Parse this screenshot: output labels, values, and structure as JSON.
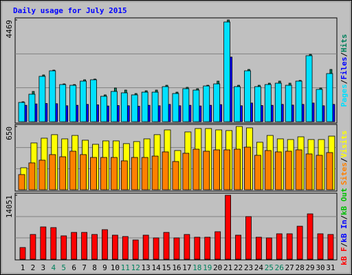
{
  "chart_data": {
    "type": "bar",
    "title": "Daily usage for July 2015",
    "legend_separator": "/",
    "categories": [
      "1",
      "2",
      "3",
      "4",
      "5",
      "6",
      "7",
      "8",
      "9",
      "10",
      "11",
      "12",
      "13",
      "14",
      "15",
      "16",
      "17",
      "18",
      "19",
      "20",
      "21",
      "22",
      "23",
      "24",
      "25",
      "26",
      "27",
      "28",
      "29",
      "30",
      "31"
    ],
    "label_colors": [
      "#000000",
      "#000000",
      "#000000",
      "#00805c",
      "#00805c",
      "#000000",
      "#000000",
      "#000000",
      "#000000",
      "#000000",
      "#00805c",
      "#00805c",
      "#000000",
      "#000000",
      "#000000",
      "#000000",
      "#000000",
      "#00805c",
      "#00805c",
      "#000000",
      "#000000",
      "#000000",
      "#000000",
      "#000000",
      "#00805c",
      "#00805c",
      "#000000",
      "#000000",
      "#000000",
      "#000000",
      "#000000"
    ],
    "grid": true,
    "grid_divisions": 3,
    "panels": [
      {
        "ylim": [
          0,
          4469
        ],
        "yticks": [
          4469
        ],
        "series": [
          {
            "name": "Pages",
            "color": "#00e0ff",
            "values": [
              846,
              1208,
              1993,
              2235,
              1631,
              1600,
              1782,
              1842,
              1117,
              1329,
              1268,
              1178,
              1298,
              1298,
              1540,
              1238,
              1449,
              1389,
              1570,
              1661,
              4379,
              1540,
              2235,
              1540,
              1631,
              1691,
              1600,
              1782,
              2899,
              1419,
              2114
            ]
          },
          {
            "name": "Files",
            "color": "#0000ff",
            "values": [
              720,
              780,
              800,
              790,
              700,
              720,
              760,
              740,
              690,
              710,
              700,
              680,
              720,
              700,
              760,
              700,
              720,
              690,
              720,
              750,
              2839,
              700,
              820,
              710,
              720,
              760,
              730,
              760,
              820,
              700,
              760
            ]
          },
          {
            "name": "Hits",
            "color": "#00805c",
            "values": [
              876,
              1329,
              2054,
              2265,
              1661,
              1631,
              1842,
              1872,
              1178,
              1480,
              1389,
              1238,
              1359,
              1389,
              1600,
              1298,
              1510,
              1449,
              1600,
              1782,
              4469,
              1600,
              2295,
              1600,
              1691,
              1782,
              1691,
              1812,
              2959,
              1480,
              2295
            ]
          }
        ]
      },
      {
        "ylim": [
          0,
          650
        ],
        "yticks": [
          650
        ],
        "series": [
          {
            "name": "Sites",
            "color": "#ff8000",
            "values": [
              156,
              276,
              304,
              361,
              339,
              396,
              361,
              332,
              332,
              332,
              297,
              332,
              332,
              346,
              389,
              290,
              375,
              417,
              396,
              410,
              410,
              417,
              438,
              354,
              403,
              389,
              396,
              410,
              368,
              354,
              382
            ]
          },
          {
            "name": "Visits",
            "color": "#ffff00",
            "values": [
              226,
              481,
              530,
              566,
              523,
              558,
              509,
              467,
              502,
              502,
              474,
              495,
              523,
              566,
              615,
              403,
              594,
              629,
              629,
              615,
              608,
              650,
              636,
              488,
              558,
              523,
              516,
              544,
              516,
              516,
              551
            ]
          }
        ]
      },
      {
        "ylim": [
          0,
          14051
        ],
        "yticks": [
          14051
        ],
        "series": [
          {
            "name": "kB F",
            "color": "#ff0000",
            "values": [
              2567,
              5437,
              7097,
              6946,
              5135,
              5890,
              5890,
              5437,
              6493,
              5286,
              4984,
              4228,
              5286,
              4682,
              5890,
              4682,
              5437,
              4833,
              4833,
              6040,
              14051,
              5286,
              9362,
              4833,
              4682,
              5588,
              5588,
              7248,
              9966,
              5588,
              5437
            ]
          },
          {
            "name": "kB In",
            "color": "#0000ff",
            "values": [
              0,
              0,
              0,
              0,
              0,
              0,
              0,
              0,
              0,
              0,
              0,
              0,
              0,
              0,
              0,
              0,
              0,
              0,
              0,
              0,
              0,
              0,
              0,
              0,
              0,
              0,
              0,
              0,
              0,
              0,
              0
            ]
          },
          {
            "name": "kB Out",
            "color": "#00c000",
            "values": [
              0,
              0,
              0,
              0,
              0,
              0,
              0,
              0,
              0,
              0,
              0,
              0,
              0,
              0,
              0,
              0,
              0,
              0,
              0,
              0,
              0,
              0,
              0,
              0,
              0,
              0,
              0,
              0,
              0,
              0,
              0
            ]
          }
        ]
      }
    ]
  }
}
